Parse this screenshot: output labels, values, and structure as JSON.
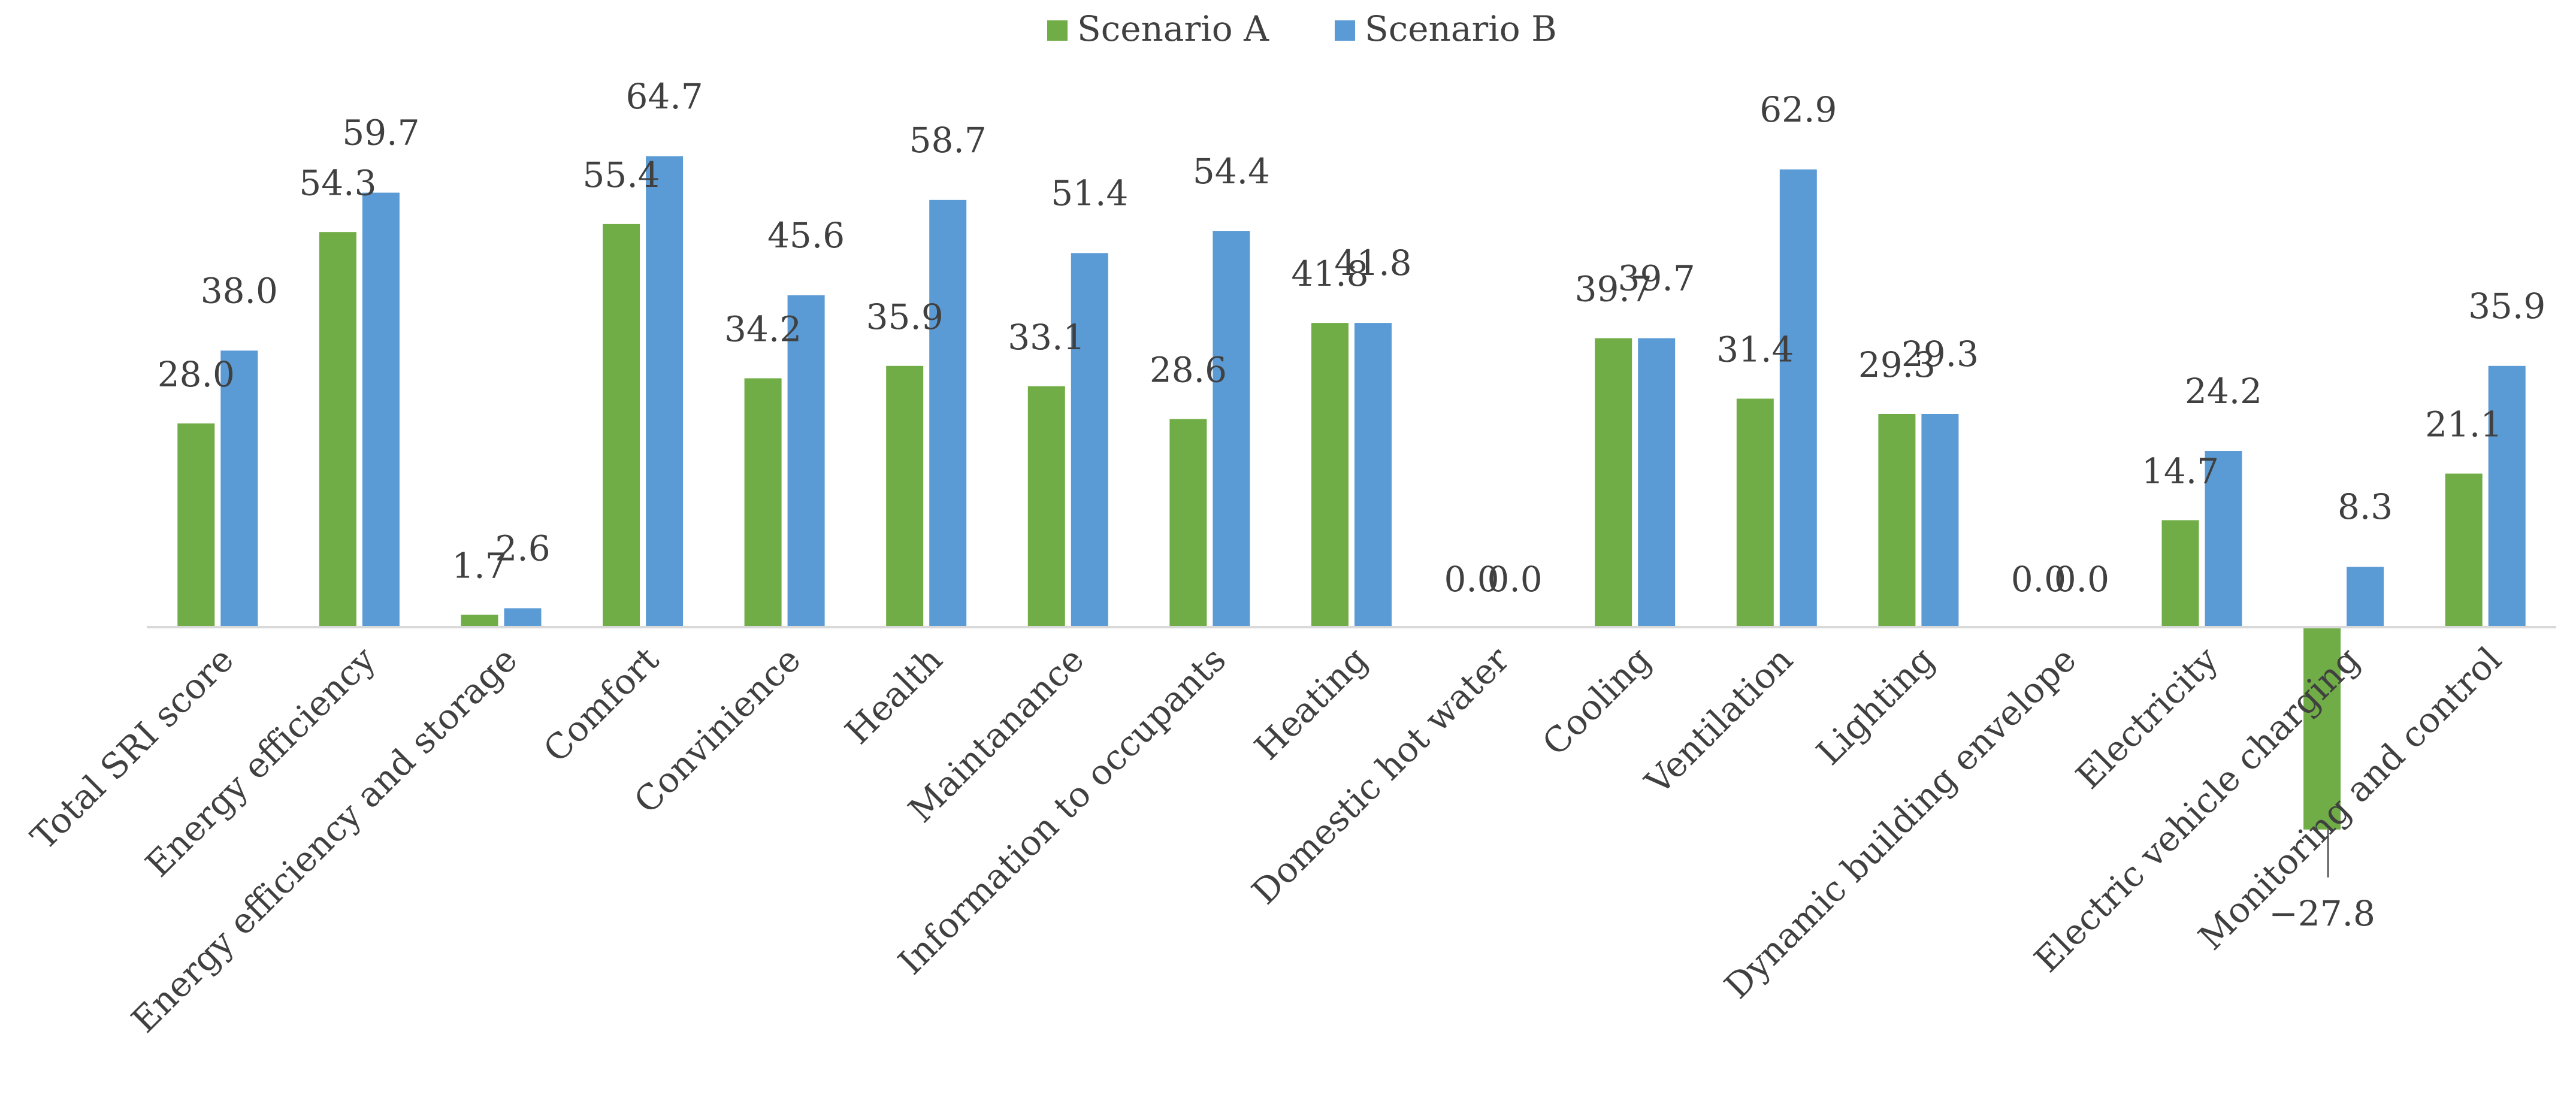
{
  "chart_data": {
    "type": "bar",
    "title": "",
    "xlabel": "",
    "ylabel": "",
    "ylim": [
      -30,
      70
    ],
    "legend_position": "top-center",
    "categories": [
      "Total SRI score",
      "Energy efficiency",
      "Energy efficiency and storage",
      "Comfort",
      "Convinience",
      "Health",
      "Maintanance",
      "Information to occupants",
      "Heating",
      "Domestic hot water",
      "Cooling",
      "Ventilation",
      "Lighting",
      "Dynamic building envelope",
      "Electricity",
      "Electric vehicle charging",
      "Monitoring and control"
    ],
    "series": [
      {
        "name": "Scenario A",
        "color": "#70AD47",
        "values": [
          28.0,
          54.3,
          1.7,
          55.4,
          34.2,
          35.9,
          33.1,
          28.6,
          41.8,
          0.0,
          39.7,
          31.4,
          29.3,
          0.0,
          14.7,
          -27.8,
          21.1
        ],
        "labels": [
          "28.0",
          "54.3",
          "1.7",
          "55.4",
          "34.2",
          "35.9",
          "33.1",
          "28.6",
          "41.8",
          "0.0",
          "39.7",
          "31.4",
          "29.3",
          "0.0",
          "14.7",
          "−27.8",
          "21.1"
        ]
      },
      {
        "name": "Scenario B",
        "color": "#5B9BD5",
        "values": [
          38.0,
          59.7,
          2.6,
          64.7,
          45.6,
          58.7,
          51.4,
          54.4,
          41.8,
          0.0,
          39.7,
          62.9,
          29.3,
          0.0,
          24.2,
          8.3,
          35.9
        ],
        "labels": [
          "38.0",
          "59.7",
          "2.6",
          "64.7",
          "45.6",
          "58.7",
          "51.4",
          "54.4",
          "41.8",
          "0.0",
          "39.7",
          "62.9",
          "29.3",
          "0.0",
          "24.2",
          "8.3",
          "35.9"
        ]
      }
    ]
  }
}
